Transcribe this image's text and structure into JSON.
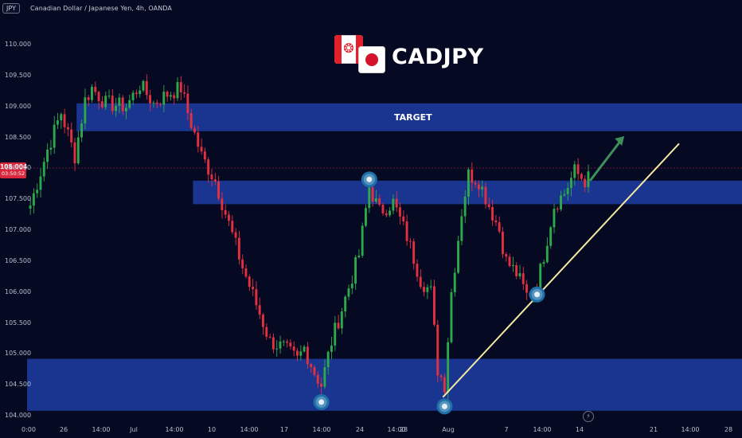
{
  "header": {
    "symbol": "JPY",
    "title": "Canadian Dollar / Japanese Yen, 4h, OANDA"
  },
  "price_tag": {
    "value": "108.004",
    "countdown": "03:50:52",
    "color": "#d9283e"
  },
  "brand": {
    "title": "CADJPY",
    "flag_left": "canada-flag-icon",
    "flag_right": "japan-flag-icon"
  },
  "zones": {
    "target_label": "TARGET",
    "color": "#1f3fa8"
  },
  "icons": {
    "bolt": "lightning-icon",
    "marker": "swing-point-icon"
  },
  "chart_data": {
    "type": "candlestick",
    "title": "CADJPY",
    "ylim": [
      103.98,
      110.6
    ],
    "y_ticks": [
      "104.000",
      "104.500",
      "105.000",
      "105.500",
      "106.000",
      "106.500",
      "107.000",
      "107.500",
      "108.000",
      "108.500",
      "109.000",
      "109.500",
      "110.000"
    ],
    "x_ticks": [
      "0:00",
      "26",
      "14:00",
      "Jul",
      "14:00",
      "10",
      "14:00",
      "17",
      "14:00",
      "24",
      "14:00",
      "28",
      "Aug",
      "7",
      "14:00",
      "14",
      "21",
      "14:00",
      "28"
    ],
    "up_color": "#2ea84a",
    "down_color": "#e23041",
    "current_price": 108.004,
    "price_path": [
      [
        0,
        107.4
      ],
      [
        5,
        108.3
      ],
      [
        9,
        108.9
      ],
      [
        13,
        108.2
      ],
      [
        16,
        109.1
      ],
      [
        18,
        109.3
      ],
      [
        22,
        109.05
      ],
      [
        28,
        109.0
      ],
      [
        32,
        109.35
      ],
      [
        36,
        109.05
      ],
      [
        40,
        109.2
      ],
      [
        44,
        109.3
      ],
      [
        46,
        108.9
      ],
      [
        50,
        108.2
      ],
      [
        54,
        107.8
      ],
      [
        58,
        107.1
      ],
      [
        62,
        106.4
      ],
      [
        66,
        105.8
      ],
      [
        70,
        105.2
      ],
      [
        74,
        105.1
      ],
      [
        78,
        104.9
      ],
      [
        80,
        105.1
      ],
      [
        83,
        104.7
      ],
      [
        85,
        104.5
      ],
      [
        88,
        105.2
      ],
      [
        92,
        105.9
      ],
      [
        96,
        106.6
      ],
      [
        99,
        107.7
      ],
      [
        102,
        107.3
      ],
      [
        106,
        107.45
      ],
      [
        110,
        106.9
      ],
      [
        114,
        106.2
      ],
      [
        117,
        106.0
      ],
      [
        119,
        104.75
      ],
      [
        121,
        104.5
      ],
      [
        123,
        106.0
      ],
      [
        126,
        107.3
      ],
      [
        128,
        107.9
      ],
      [
        131,
        107.8
      ],
      [
        134,
        107.4
      ],
      [
        137,
        107.0
      ],
      [
        139,
        106.5
      ],
      [
        142,
        106.3
      ],
      [
        145,
        105.95
      ],
      [
        148,
        106.1
      ],
      [
        150,
        106.6
      ],
      [
        153,
        107.4
      ],
      [
        156,
        107.6
      ],
      [
        159,
        107.95
      ],
      [
        162,
        107.8
      ],
      [
        163,
        107.95
      ]
    ],
    "swing_points": [
      [
        99,
        107.82
      ],
      [
        85,
        104.22
      ],
      [
        121,
        104.15
      ],
      [
        148,
        105.96
      ]
    ],
    "zones": [
      {
        "name": "TARGET",
        "x_start": 14,
        "price_low": 108.6,
        "price_high": 109.05
      },
      {
        "name": "resistance",
        "x_start": 48,
        "price_low": 107.42,
        "price_high": 107.8
      },
      {
        "name": "support",
        "x_start": 0,
        "price_low": 104.08,
        "price_high": 104.92
      }
    ],
    "trendline": [
      [
        121,
        104.3
      ],
      [
        190,
        108.4
      ]
    ],
    "arrow": [
      [
        164,
        107.8
      ],
      [
        174,
        108.52
      ]
    ]
  }
}
